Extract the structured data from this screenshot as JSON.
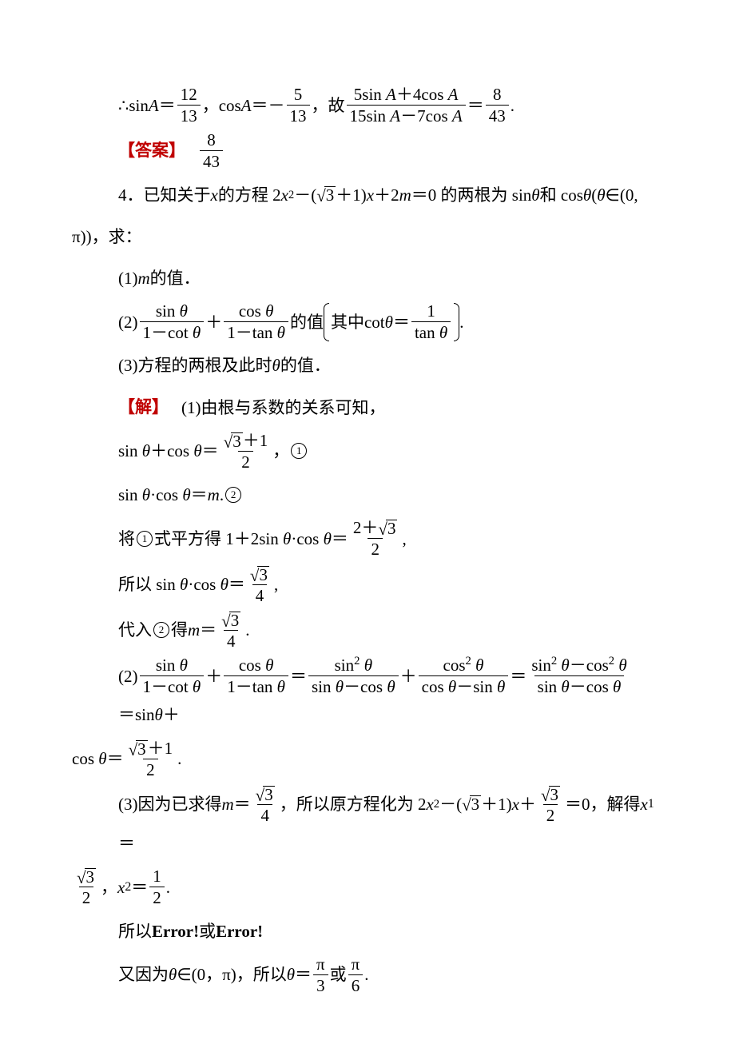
{
  "colors": {
    "text": "#000000",
    "accent": "#c00000",
    "background": "#ffffff"
  },
  "typography": {
    "body_fontsize_pt": 16,
    "cjk_font": "SimSun",
    "latin_font": "Times New Roman",
    "line_height": 2.2
  },
  "problem3_cont": {
    "sinA_num": "12",
    "sinA_den": "13",
    "cosA_num": "5",
    "cosA_den": "13",
    "ratio_num": "5sin A＋4cos A",
    "ratio_den": "15sin A－7cos A",
    "ratio_val_num": "8",
    "ratio_val_den": "43",
    "therefore_prefix": "∴sin ",
    "cos_prefix": "cos ",
    "gu": "故",
    "answer_label": "【答案】",
    "answer_num": "8",
    "answer_den": "43"
  },
  "problem4": {
    "stem_prefix": "4．已知关于 ",
    "stem_mid1": " 的方程 2",
    "stem_mid2": "－(",
    "stem_mid3": "＋1)",
    "stem_mid4": "＋2",
    "stem_mid5": "＝0 的两根为 sin ",
    "stem_mid6": " 和 cos ",
    "stem_mid7": "(",
    "stem_mid8": "∈(0,",
    "stem_tail": "π))，求：",
    "var_x": "x",
    "var_m": "m",
    "var_theta": "θ",
    "var_A": "A",
    "q1": "(1)",
    "q1_tail": " 的值．",
    "q2_prefix": "(2)",
    "q2_frac1_num": "sin θ",
    "q2_frac1_den": "1－cot θ",
    "q2_frac2_num": "cos θ",
    "q2_frac2_den": "1－tan θ",
    "q2_mid": "的值",
    "q2_note_pre": "其中cot ",
    "q2_note_eq": "＝",
    "q2_note_frac_num": "1",
    "q2_note_frac_den": "tan θ",
    "q3": "(3)方程的两根及此时 ",
    "q3_tail": " 的值．",
    "sol_label": "【解】",
    "s1_intro": "(1)由根与系数的关系可知，",
    "s1_line_sum_lhs": "sin θ＋cos θ＝",
    "s1_sum_num_inner": "3",
    "s1_sum_num_tail": "＋1",
    "s1_sum_den": "2",
    "s1_mark1": "①",
    "s1_line_prod_lhs": "sin θ·cos θ＝",
    "s1_line_prod_rhs": ".",
    "s1_mark2": "②",
    "s1_sq_pre": "将①式平方得 1＋2sin θ·cos θ＝",
    "s1_sq_num_pre": "2＋",
    "s1_sq_num_inner": "3",
    "s1_sq_den": "2",
    "s1_so_pre": "所以 sin θ·cos θ＝",
    "s1_so_num_inner": "3",
    "s1_so_den": "4",
    "s1_sub_pre": "代入②得 ",
    "s1_sub_eq": "＝",
    "s1_sub_num_inner": "3",
    "s1_sub_den": "4",
    "s2_prefix": "(2)",
    "s2_t1_num": "sin θ",
    "s2_t1_den": "1－cot θ",
    "s2_t2_num": "cos θ",
    "s2_t2_den": "1－tan θ",
    "s2_t3_num": "sin² θ",
    "s2_t3_den": "sin θ－cos θ",
    "s2_t4_num": "cos² θ",
    "s2_t4_den": "cos θ－sin θ",
    "s2_t5_num": "sin² θ－cos² θ",
    "s2_t5_den": "sin θ－cos θ",
    "s2_tail1": "＝sin ",
    "s2_tail2": "＋",
    "s2_line2_pre": "cos θ＝",
    "s2_line2_num_inner": "3",
    "s2_line2_num_tail": "＋1",
    "s2_line2_den": "2",
    "s3_pre1": "(3)因为已求得 ",
    "s3_eq": "＝",
    "s3_m_num_inner": "3",
    "s3_m_den": "4",
    "s3_mid": "，所以原方程化为 2",
    "s3_mid2": "－(",
    "s3_mid3": "＋1)",
    "s3_mid4": "＋",
    "s3_c_num_inner": "3",
    "s3_c_den": "2",
    "s3_mid5": "＝0，解得 ",
    "s3_x1_label": "x",
    "s3_x1_sub": "1",
    "s3_x1_eq": "＝",
    "s3_x1_num_inner": "3",
    "s3_x1_den": "2",
    "s3_x2_label": "x",
    "s3_x2_sub": "2",
    "s3_x2_eq": "＝",
    "s3_x2_num": "1",
    "s3_x2_den": "2",
    "s3_err_pre": "所以",
    "s3_err1": "Error!",
    "s3_err_or": "或",
    "s3_err2": "Error!",
    "s3_final_pre": "又因为 ",
    "s3_final_mid": "∈(0，π)，所以 ",
    "s3_final_eq": "＝",
    "s3_final_f1_num": "π",
    "s3_final_f1_den": "3",
    "s3_final_or": "或",
    "s3_final_f2_num": "π",
    "s3_final_f2_den": "6"
  }
}
